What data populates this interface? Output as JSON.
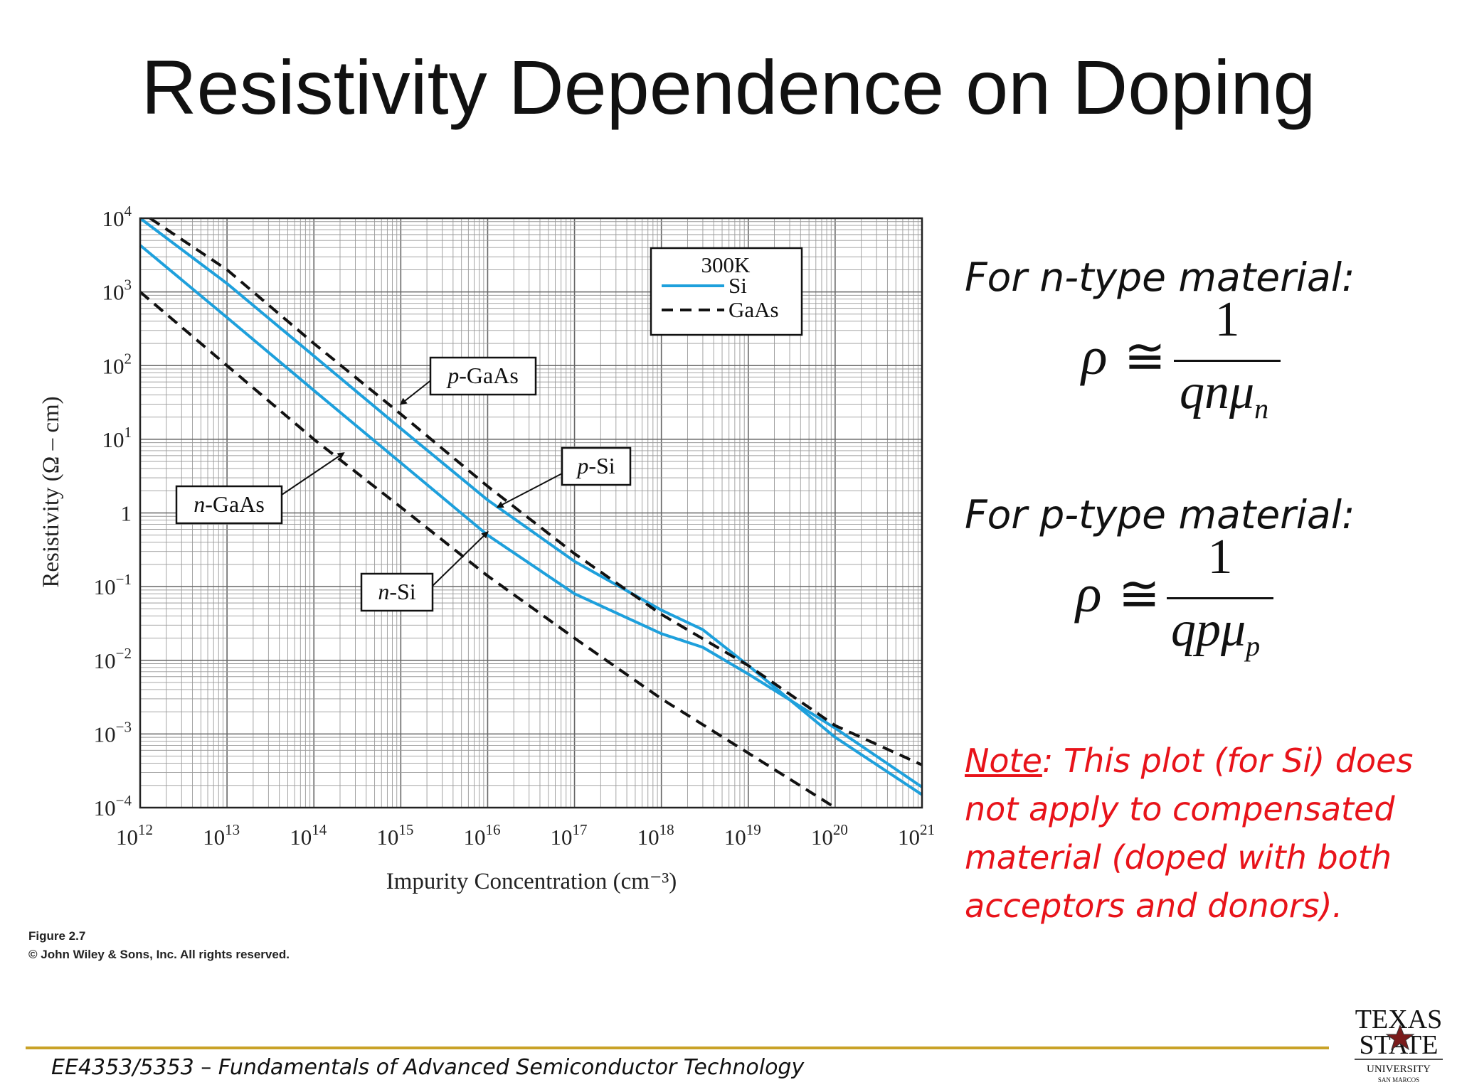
{
  "slide": {
    "title": "Resistivity Dependence on Doping",
    "n_heading": "For n-type material:",
    "n_formula": {
      "lhs": "ρ",
      "rel": "≅",
      "numerator": "1",
      "denominator": "qnμ",
      "subscript": "n"
    },
    "p_heading": "For p-type material:",
    "p_formula": {
      "lhs": "ρ",
      "rel": "≅",
      "numerator": "1",
      "denominator": "qpμ",
      "subscript": "p"
    },
    "note_label": "Note",
    "note_text": ": This plot (for Si) does not apply to compensated material (doped with both acceptors and donors).",
    "figure_caption": "Figure 2.7",
    "copyright": "© John Wiley & Sons, Inc. All rights reserved.",
    "footer_course": "EE4353/5353",
    "footer_dash": " – ",
    "footer_subject": "Fundamentals of Advanced Semiconductor Technology",
    "logo": {
      "line1": "TEXAS",
      "line2": "STATE",
      "line3": "UNIVERSITY",
      "line4": "SAN MARCOS",
      "icon": "star-icon"
    }
  },
  "colors": {
    "si": "#1ea0dc",
    "gaas": "#111111",
    "note": "#e8131a",
    "footer_rule": "#c9a227",
    "logo_star": "#7a1c1c"
  },
  "chart_data": {
    "type": "line",
    "title": "",
    "xlabel": "Impurity Concentration (cm⁻³)",
    "ylabel": "Resistivity (Ω – cm)",
    "x_scale": "log",
    "y_scale": "log",
    "xlim": [
      1000000000000.0,
      1e+21
    ],
    "ylim": [
      0.0001,
      10000
    ],
    "grid": true,
    "x_ticks": [
      {
        "base": "10",
        "exp": "12"
      },
      {
        "base": "10",
        "exp": "13"
      },
      {
        "base": "10",
        "exp": "14"
      },
      {
        "base": "10",
        "exp": "15"
      },
      {
        "base": "10",
        "exp": "16"
      },
      {
        "base": "10",
        "exp": "17"
      },
      {
        "base": "10",
        "exp": "18"
      },
      {
        "base": "10",
        "exp": "19"
      },
      {
        "base": "10",
        "exp": "20"
      },
      {
        "base": "10",
        "exp": "21"
      }
    ],
    "y_ticks": [
      {
        "value": 0.0001,
        "base": "10",
        "exp": "−4"
      },
      {
        "value": 0.001,
        "base": "10",
        "exp": "−3"
      },
      {
        "value": 0.01,
        "base": "10",
        "exp": "−2"
      },
      {
        "value": 0.1,
        "base": "10",
        "exp": "−1"
      },
      {
        "value": 1,
        "base": "1",
        "exp": ""
      },
      {
        "value": 10,
        "base": "10",
        "exp": "1"
      },
      {
        "value": 100,
        "base": "10",
        "exp": "2"
      },
      {
        "value": 1000,
        "base": "10",
        "exp": "3"
      },
      {
        "value": 10000,
        "base": "10",
        "exp": "4"
      }
    ],
    "legend": {
      "title": "300K",
      "placement": "top-right",
      "entries": [
        {
          "label": "Si",
          "style": "solid",
          "color": "#1ea0dc"
        },
        {
          "label": "GaAs",
          "style": "dashed",
          "color": "#111111"
        }
      ]
    },
    "series": [
      {
        "label": "p-Si",
        "material": "Si",
        "style": "solid",
        "points": [
          [
            1000000000000.0,
            10000
          ],
          [
            10000000000000.0,
            1300
          ],
          [
            100000000000000.0,
            135
          ],
          [
            1000000000000000.0,
            14
          ],
          [
            1e+16,
            1.5
          ],
          [
            1e+17,
            0.22
          ],
          [
            1e+18,
            0.048
          ],
          [
            3e+18,
            0.026
          ],
          [
            1e+19,
            0.0085
          ],
          [
            1e+20,
            0.0009
          ],
          [
            1e+21,
            0.00015
          ]
        ]
      },
      {
        "label": "n-Si",
        "material": "Si",
        "style": "solid",
        "points": [
          [
            1000000000000.0,
            4300
          ],
          [
            10000000000000.0,
            450
          ],
          [
            100000000000000.0,
            46
          ],
          [
            1000000000000000.0,
            4.8
          ],
          [
            1e+16,
            0.5
          ],
          [
            1e+17,
            0.08
          ],
          [
            1e+18,
            0.023
          ],
          [
            3e+18,
            0.015
          ],
          [
            1e+19,
            0.0065
          ],
          [
            1e+20,
            0.0012
          ],
          [
            1e+21,
            0.00019
          ]
        ]
      },
      {
        "label": "p-GaAs",
        "material": "GaAs",
        "style": "dashed",
        "points": [
          [
            1300000000000.0,
            10000
          ],
          [
            10000000000000.0,
            2000
          ],
          [
            100000000000000.0,
            200
          ],
          [
            1000000000000000.0,
            22
          ],
          [
            1e+16,
            2.3
          ],
          [
            1e+17,
            0.28
          ],
          [
            1e+18,
            0.042
          ],
          [
            1e+19,
            0.0085
          ],
          [
            1e+20,
            0.0013
          ],
          [
            1e+21,
            0.00038
          ]
        ]
      },
      {
        "label": "n-GaAs",
        "material": "GaAs",
        "style": "dashed",
        "points": [
          [
            1000000000000.0,
            1000
          ],
          [
            10000000000000.0,
            100
          ],
          [
            100000000000000.0,
            10
          ],
          [
            1000000000000000.0,
            1.2
          ],
          [
            1e+16,
            0.14
          ],
          [
            1e+17,
            0.02
          ],
          [
            1e+18,
            0.003
          ],
          [
            1e+19,
            0.00055
          ],
          [
            1e+20,
            0.0001
          ]
        ]
      }
    ],
    "annotations": [
      {
        "italic": "p",
        "rest": "-GaAs",
        "arrow_to": [
          1000000000000000.0,
          30
        ]
      },
      {
        "italic": "p",
        "rest": "-Si",
        "arrow_to": [
          1.3e+16,
          1.2
        ]
      },
      {
        "italic": "n",
        "rest": "-GaAs",
        "arrow_to": [
          220000000000000.0,
          6.5
        ]
      },
      {
        "italic": "n",
        "rest": "-Si",
        "arrow_to": [
          1e+16,
          0.55
        ]
      }
    ]
  }
}
